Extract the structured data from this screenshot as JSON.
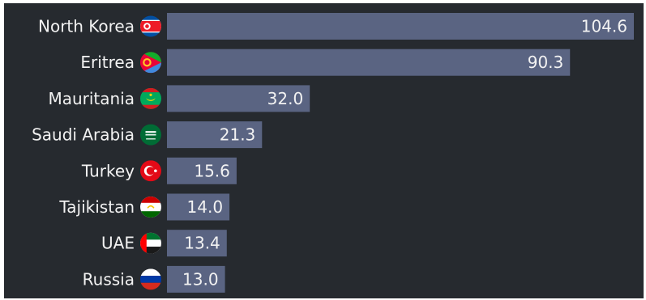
{
  "chart_data": {
    "type": "bar",
    "orientation": "horizontal",
    "title": "",
    "xlabel": "",
    "ylabel": "",
    "categories": [
      "North Korea",
      "Eritrea",
      "Mauritania",
      "Saudi Arabia",
      "Turkey",
      "Tajikistan",
      "UAE",
      "Russia"
    ],
    "values": [
      104.6,
      90.3,
      32.0,
      21.3,
      15.6,
      14.0,
      13.4,
      13.0
    ],
    "value_labels": [
      "104.6",
      "90.3",
      "32.0",
      "21.3",
      "15.6",
      "14.0",
      "13.4",
      "13.0"
    ],
    "flags": [
      "north-korea-flag-icon",
      "eritrea-flag-icon",
      "mauritania-flag-icon",
      "saudi-arabia-flag-icon",
      "turkey-flag-icon",
      "tajikistan-flag-icon",
      "uae-flag-icon",
      "russia-flag-icon"
    ],
    "xlim": [
      0,
      104.6
    ],
    "grid": false,
    "legend": "none",
    "colors": {
      "background": "#262a2f",
      "bar": "#5a6482",
      "text": "#f2f2f2"
    }
  }
}
